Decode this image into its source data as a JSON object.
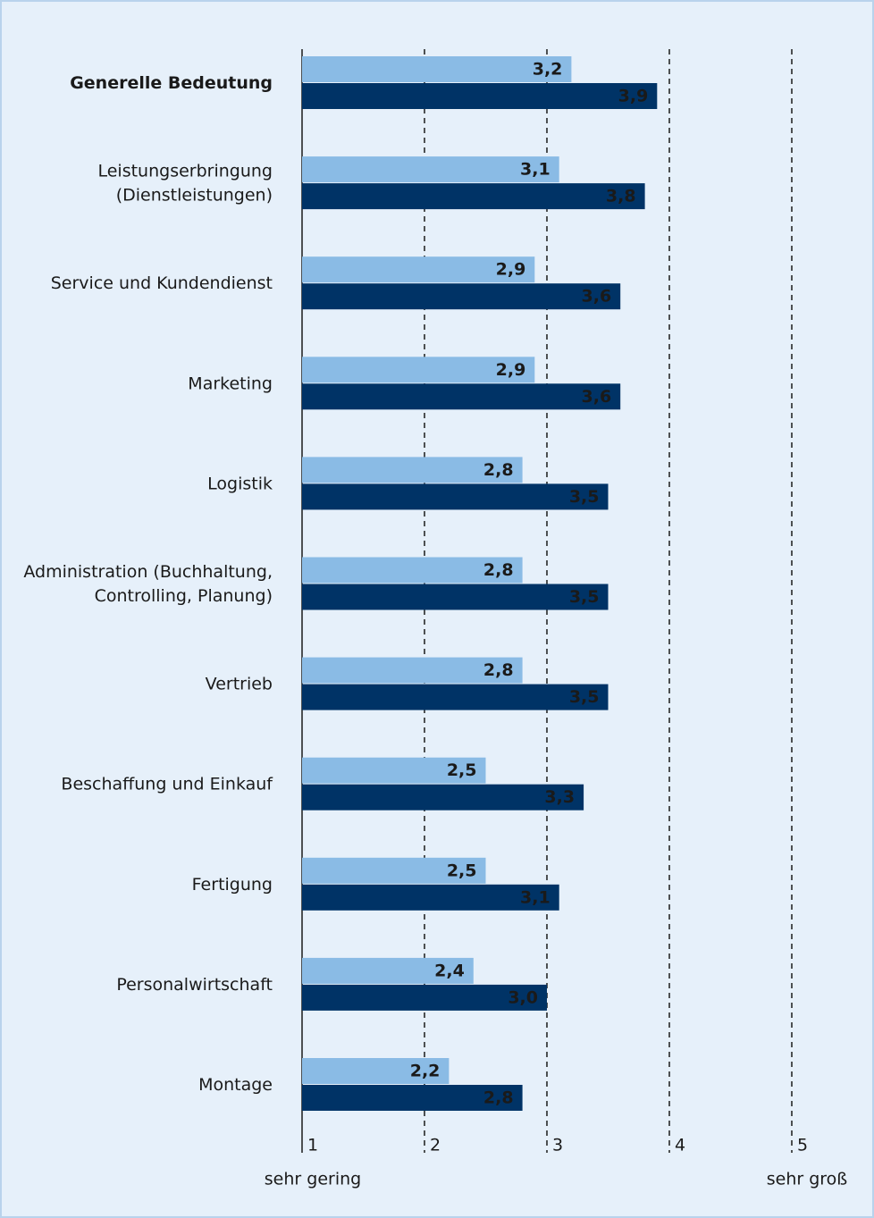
{
  "chart_data": {
    "type": "hbar_grouped",
    "categories": [
      "Generelle Bedeutung",
      "Leistungserbringung\n(Dienstleistungen)",
      "Service und Kundendienst",
      "Marketing",
      "Logistik",
      "Administration (Buchhaltung,\nControlling, Planung)",
      "Vertrieb",
      "Beschaffung und Einkauf",
      "Fertigung",
      "Personalwirtschaft",
      "Montage"
    ],
    "bold_category_index": 0,
    "series": [
      {
        "color": "#8abbe5",
        "values": [
          3.2,
          3.1,
          2.9,
          2.9,
          2.8,
          2.8,
          2.8,
          2.5,
          2.5,
          2.4,
          2.2
        ],
        "value_labels": [
          "3,2",
          "3,1",
          "2,9",
          "2,9",
          "2,8",
          "2,8",
          "2,8",
          "2,5",
          "2,5",
          "2,4",
          "2,2"
        ]
      },
      {
        "color": "#003366",
        "values": [
          3.9,
          3.8,
          3.6,
          3.6,
          3.5,
          3.5,
          3.5,
          3.3,
          3.1,
          3.0,
          2.8
        ],
        "value_labels": [
          "3,9",
          "3,8",
          "3,6",
          "3,6",
          "3,5",
          "3,5",
          "3,5",
          "3,3",
          "3,1",
          "3,0",
          "2,8"
        ]
      }
    ],
    "xlim": [
      1,
      5
    ],
    "xticks": [
      1,
      2,
      3,
      4,
      5
    ],
    "grid": true,
    "xlabel_low": "sehr gering",
    "xlabel_high": "sehr groß"
  }
}
